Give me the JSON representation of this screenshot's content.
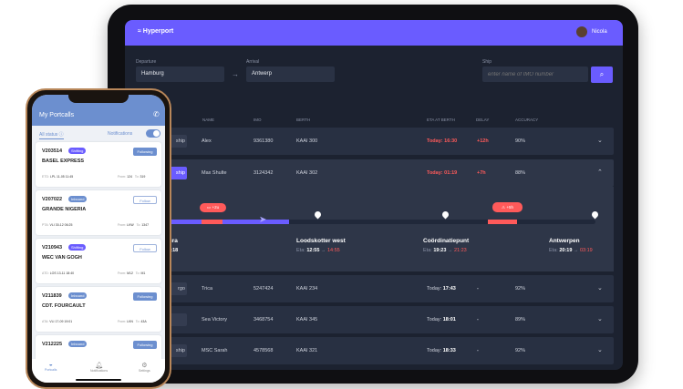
{
  "app": {
    "brand": "Hyperport",
    "user": "Nicola"
  },
  "search": {
    "departure_label": "Departure",
    "departure": "Hamburg",
    "arrival_label": "Arrival",
    "arrival": "Antwerp",
    "ship_label": "Ship",
    "ship_placeholder": "enter name of IMO number"
  },
  "columns": [
    "NAME",
    "IMO",
    "BERTH",
    "ETA AT BERTH",
    "DELAY",
    "ACCURACY"
  ],
  "rows": [
    {
      "type": "ship",
      "name": "Alex",
      "imo": "9361380",
      "berth": "KAAI 300",
      "eta_prefix": "Today:",
      "eta": "16:30",
      "eta_late": true,
      "delay": "+12h",
      "accuracy": "90%"
    },
    {
      "type": "ship",
      "name": "Max Shulte",
      "imo": "3124342",
      "berth": "KAAI 302",
      "eta_prefix": "Today:",
      "eta": "01:19",
      "eta_late": true,
      "delay": "+7h",
      "accuracy": "88%",
      "expanded": true
    },
    {
      "type": "rgo",
      "name": "Trica",
      "imo": "5247424",
      "berth": "KAAI 234",
      "eta_prefix": "Today:",
      "eta": "17:43",
      "delay": "-",
      "accuracy": "92%"
    },
    {
      "type": "",
      "name": "Sea Victory",
      "imo": "3468754",
      "berth": "KAAI 345",
      "eta_prefix": "Today:",
      "eta": "18:01",
      "delay": "-",
      "accuracy": "89%"
    },
    {
      "type": "ship",
      "name": "MSC Sarah",
      "imo": "4578568",
      "berth": "KAAI 321",
      "eta_prefix": "Today:",
      "eta": "18:33",
      "delay": "-",
      "accuracy": "92%"
    }
  ],
  "timeline": {
    "progress": 0.28,
    "alerts": [
      {
        "icon": "chat-icon",
        "text": "+2u"
      },
      {
        "icon": "warning-icon",
        "text": "+5h"
      }
    ],
    "stops": [
      {
        "name": "entura",
        "eta_label": "e:",
        "eta": "23:18",
        "new_eta": ""
      },
      {
        "name": "Loodskotter west",
        "eta_label": "Eta:",
        "eta": "12:55",
        "new_eta": "14:55"
      },
      {
        "name": "Coördinatiepunt",
        "eta_label": "Eta:",
        "eta": "19:23",
        "new_eta": "21:23"
      },
      {
        "name": "Antwerpen",
        "eta_label": "Eta:",
        "eta": "20:19",
        "new_eta": "03:19"
      }
    ]
  },
  "phone": {
    "title": "My Portcalls",
    "filter": "All status",
    "notifications": "Notifications",
    "notifications_on": true,
    "cards": [
      {
        "id": "V203514",
        "badge": "Shifting",
        "follow": "Following",
        "name": "BASEL EXPRESS",
        "meta_label": "ETD:",
        "meta": "LPL 11-05 11:45",
        "from": "124",
        "to": "319"
      },
      {
        "id": "V207022",
        "badge": "Inbound",
        "follow": "Follow",
        "name": "GRANDE NIGERIA",
        "meta_label": "PTA:",
        "meta": "VLI 30-12 06:25",
        "from": "LKW",
        "to": "1347"
      },
      {
        "id": "V210943",
        "badge": "Shifting",
        "follow": "Follow",
        "name": "WEC VAN GOGH",
        "meta_label": "ATD:",
        "meta": "LOS 13-11 18:40",
        "from": "M12",
        "to": "M1"
      },
      {
        "id": "V211839",
        "badge": "Inbound",
        "follow": "Following",
        "name": "CDT. FOURCAULT",
        "meta_label": "ATA:",
        "meta": "VLI 17-09 19:01",
        "from": "LKN",
        "to": "43A"
      },
      {
        "id": "V212225",
        "badge": "Inbound",
        "follow": "Following"
      }
    ],
    "from_label": "From:",
    "to_label": "To:",
    "tabs": [
      "Portcalls",
      "Notifications",
      "Settings"
    ]
  },
  "colors": {
    "accent": "#6a5cff",
    "late": "#ff5a5a",
    "shifting": "#6a5cff",
    "inbound": "#6c8fcf"
  }
}
